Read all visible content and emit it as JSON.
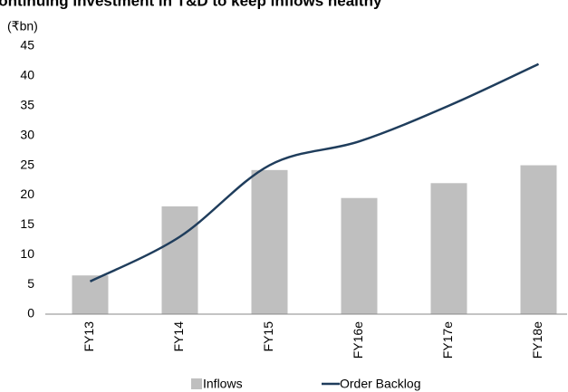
{
  "chart_data": {
    "type": "bar_line",
    "title": "Continuing investment in T&D to keep inflows healthy",
    "y_label": "(₹bn)",
    "categories": [
      "FY13",
      "FY14",
      "FY15",
      "FY16e",
      "FY17e",
      "FY18e"
    ],
    "series": [
      {
        "name": "Inflows",
        "type": "bar",
        "color": "#bfbfbf",
        "values": [
          6.5,
          18.1,
          24.2,
          19.5,
          22,
          25
        ]
      },
      {
        "name": "Order Backlog",
        "type": "line",
        "color": "#1f3d5c",
        "values": [
          5.5,
          13,
          25,
          29,
          35,
          42
        ]
      }
    ],
    "ylim": [
      0,
      45
    ],
    "yticks": [
      0,
      5,
      10,
      15,
      20,
      25,
      30,
      35,
      40,
      45
    ],
    "grid": false
  }
}
